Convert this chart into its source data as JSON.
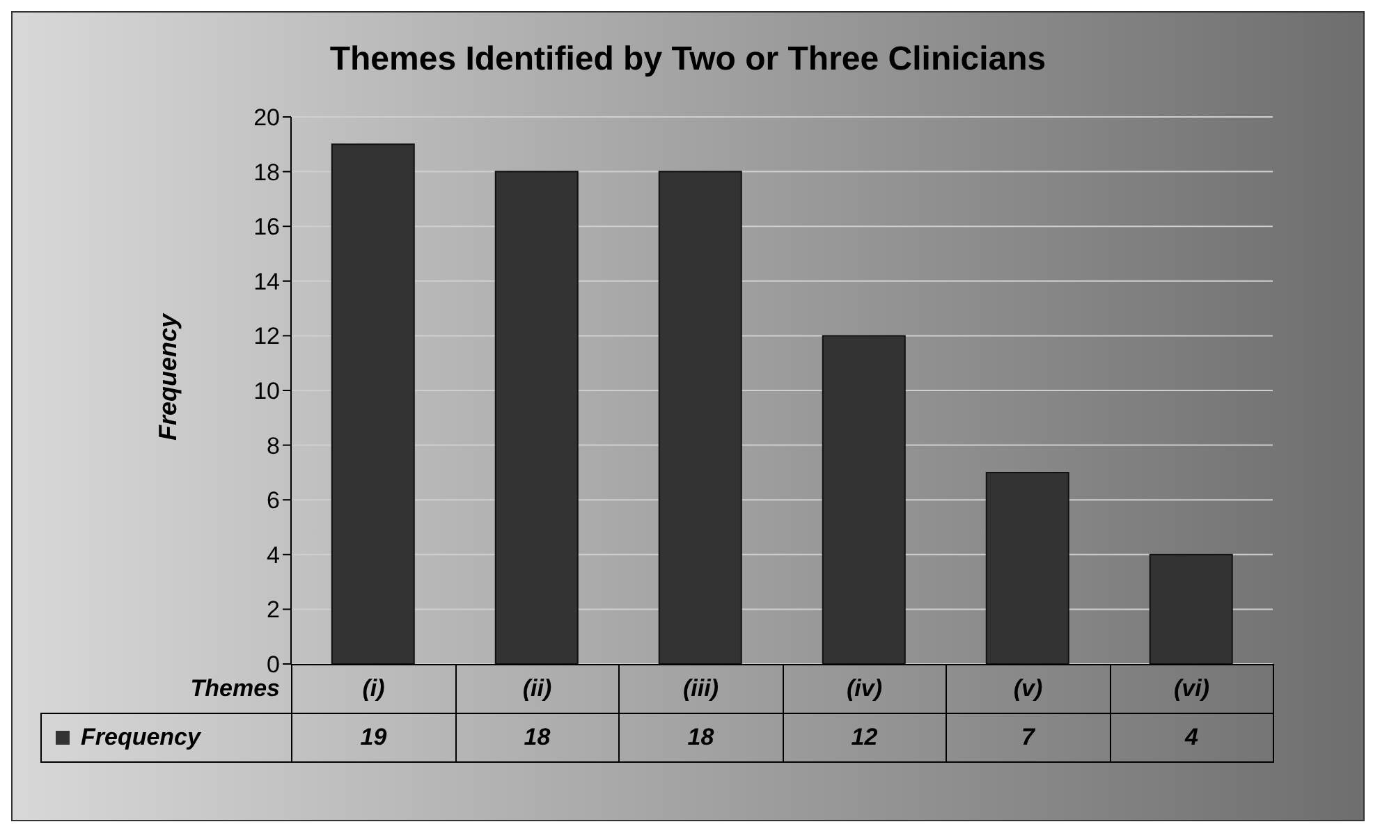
{
  "chart_data": {
    "type": "bar",
    "title": "Themes Identified by Two or Three Clinicians",
    "xlabel": "Themes",
    "ylabel": "Frequency",
    "categories": [
      "(i)",
      "(ii)",
      "(iii)",
      "(iv)",
      "(v)",
      "(vi)"
    ],
    "series": [
      {
        "name": "Frequency",
        "color": "#333333",
        "values": [
          19,
          18,
          18,
          12,
          7,
          4
        ]
      }
    ],
    "ylim": [
      0,
      20
    ],
    "yticks": [
      0,
      2,
      4,
      6,
      8,
      10,
      12,
      14,
      16,
      18,
      20
    ],
    "grid": "y",
    "data_labels": true
  }
}
